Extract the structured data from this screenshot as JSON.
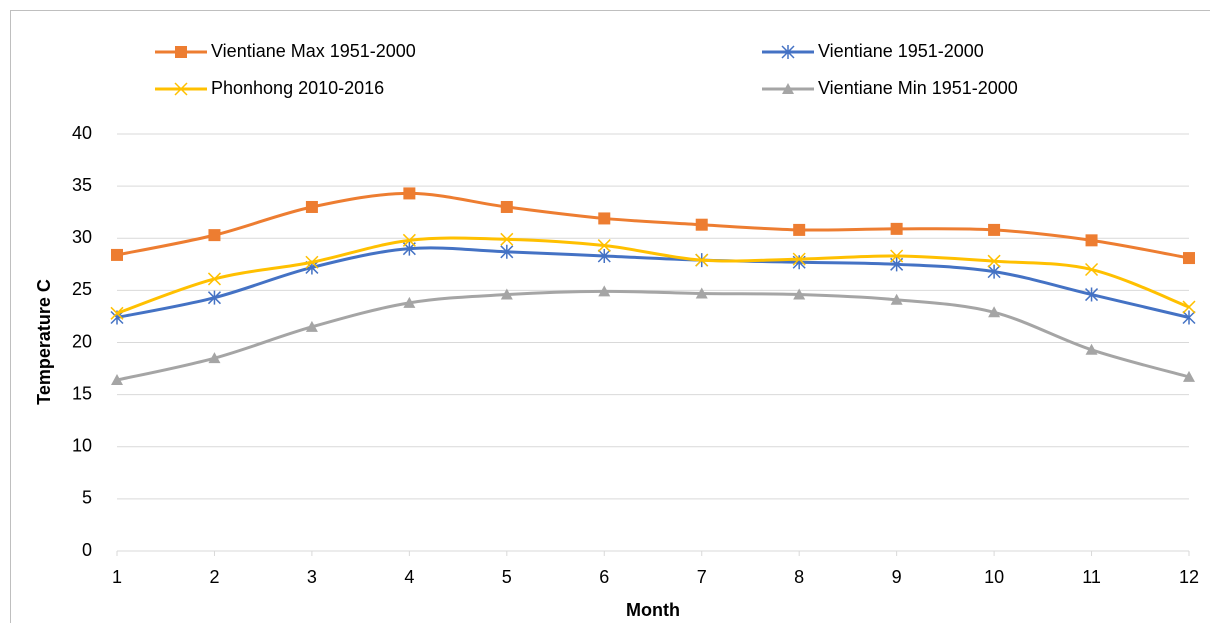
{
  "chart_data": {
    "type": "line",
    "smooth": true,
    "xlabel": "Month",
    "ylabel": "Temperature C",
    "x": [
      1,
      2,
      3,
      4,
      5,
      6,
      7,
      8,
      9,
      10,
      11,
      12
    ],
    "xlim": [
      1,
      12
    ],
    "xticks": [
      1,
      2,
      3,
      4,
      5,
      6,
      7,
      8,
      9,
      10,
      11,
      12
    ],
    "ylim": [
      0,
      40
    ],
    "yticks": [
      0,
      5,
      10,
      15,
      20,
      25,
      30,
      35,
      40
    ],
    "grid": true,
    "legend": "top",
    "series": [
      {
        "name": "Vientiane Max 1951-2000",
        "color": "#ED7D31",
        "marker": "square",
        "values": [
          28.4,
          30.3,
          33.0,
          34.3,
          33.0,
          31.9,
          31.3,
          30.8,
          30.9,
          30.8,
          29.8,
          28.1
        ]
      },
      {
        "name": "Vientiane 1951-2000",
        "color": "#4472C4",
        "marker": "asterisk",
        "values": [
          22.4,
          24.3,
          27.2,
          29.0,
          28.7,
          28.3,
          27.9,
          27.7,
          27.5,
          26.8,
          24.6,
          22.4
        ]
      },
      {
        "name": "Phonhong 2010-2016",
        "color": "#FFC000",
        "marker": "x",
        "values": [
          22.8,
          26.1,
          27.7,
          29.8,
          29.9,
          29.3,
          27.9,
          28.0,
          28.3,
          27.8,
          27.0,
          23.4
        ]
      },
      {
        "name": "Vientiane Min 1951-2000",
        "color": "#A5A5A5",
        "marker": "triangle",
        "values": [
          16.4,
          18.5,
          21.5,
          23.8,
          24.6,
          24.9,
          24.7,
          24.6,
          24.1,
          22.9,
          19.3,
          16.7
        ]
      }
    ]
  }
}
